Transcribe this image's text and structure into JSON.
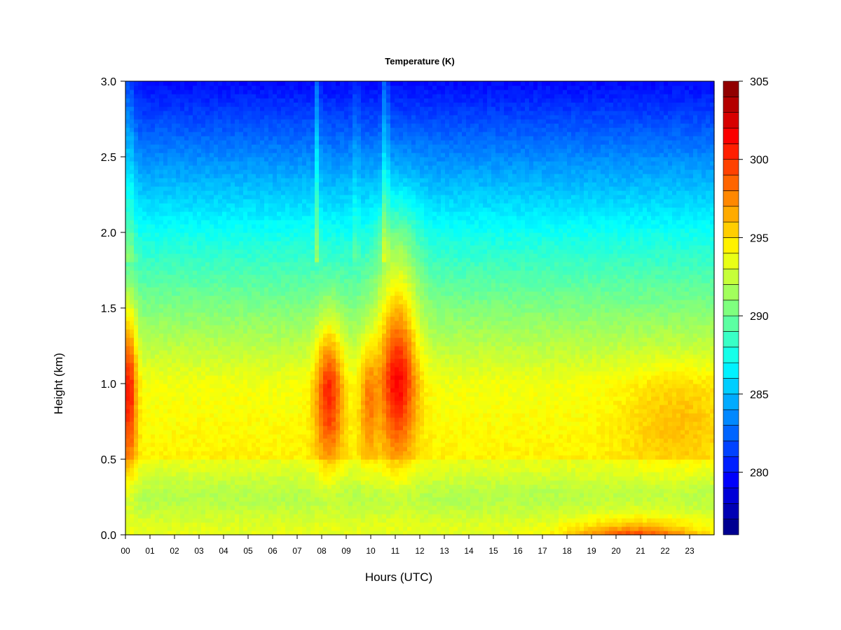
{
  "chart_data": {
    "type": "heatmap",
    "title": "Temperature (K)",
    "xlabel": "Hours (UTC)",
    "ylabel": "Height (km)",
    "x_ticks": [
      "00",
      "01",
      "02",
      "03",
      "04",
      "05",
      "06",
      "07",
      "08",
      "09",
      "10",
      "11",
      "12",
      "13",
      "14",
      "15",
      "16",
      "17",
      "18",
      "19",
      "20",
      "21",
      "22",
      "23"
    ],
    "x_range": [
      0,
      24
    ],
    "y_ticks": [
      "0.0",
      "0.5",
      "1.0",
      "1.5",
      "2.0",
      "2.5",
      "3.0"
    ],
    "y_range": [
      0,
      3
    ],
    "colorbar": {
      "ticks": [
        "280",
        "285",
        "290",
        "295",
        "300",
        "305"
      ],
      "range": [
        276,
        305
      ],
      "levels": 29
    },
    "colors": [
      "#00007f",
      "#0000ff",
      "#007fff",
      "#00ffff",
      "#7fff7f",
      "#ffff00",
      "#ff7f00",
      "#ff0000",
      "#7f0000"
    ],
    "features": [
      {
        "hour": 0.1,
        "height": 1.0,
        "temperature": 301
      },
      {
        "hour": 8.3,
        "height": 0.9,
        "temperature": 301
      },
      {
        "hour": 11.0,
        "height": 0.95,
        "temperature": 302
      },
      {
        "hour": 20.8,
        "height": 0.05,
        "temperature": 301
      }
    ]
  }
}
